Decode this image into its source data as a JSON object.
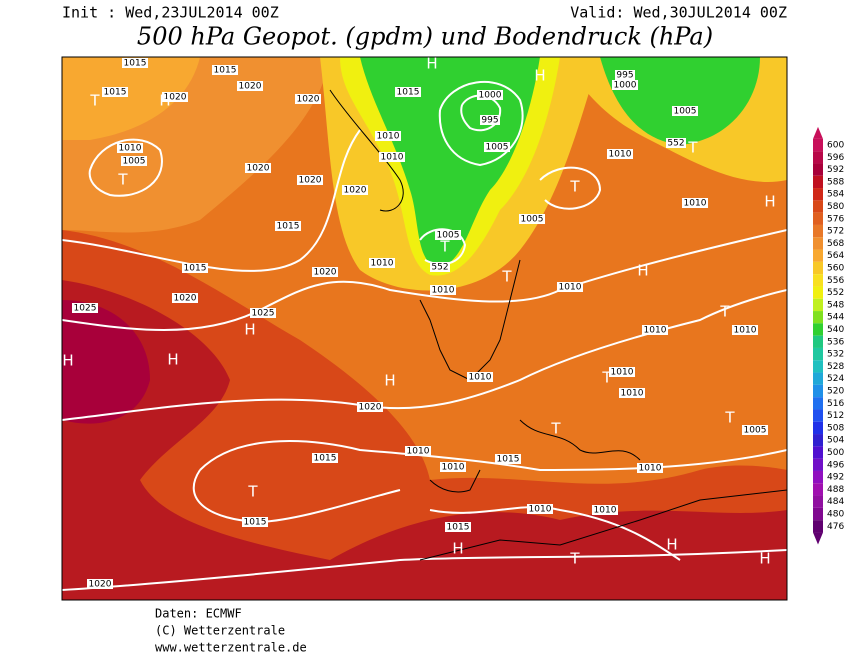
{
  "header": {
    "init": "Init : Wed,23JUL2014 00Z",
    "valid": "Valid: Wed,30JUL2014 00Z",
    "title": "500 hPa Geopot. (gpdm) und Bodendruck (hPa)"
  },
  "colorbar": {
    "ticks": [
      600,
      596,
      592,
      588,
      584,
      580,
      576,
      572,
      568,
      564,
      560,
      556,
      552,
      548,
      544,
      540,
      536,
      532,
      528,
      524,
      520,
      516,
      512,
      508,
      504,
      500,
      496,
      492,
      488,
      484,
      480,
      476
    ],
    "colors": [
      "#c8105a",
      "#b80848",
      "#a8003a",
      "#c01020",
      "#d02818",
      "#d84818",
      "#e06020",
      "#e87828",
      "#f09030",
      "#f8a830",
      "#f8c828",
      "#f8e020",
      "#f0f010",
      "#c0f020",
      "#80e020",
      "#30d030",
      "#20c880",
      "#20c8a0",
      "#20c0c0",
      "#20a8d8",
      "#2090e8",
      "#2070f0",
      "#2050f0",
      "#2030e8",
      "#3020d0",
      "#5010d0",
      "#7010c8",
      "#9010c0",
      "#a010b0",
      "#9010a0",
      "#800890",
      "#600070"
    ]
  },
  "map_labels": [
    "1015",
    "1015",
    "1020",
    "T",
    "H",
    "1015",
    "1020",
    "1020",
    "1010",
    "1005",
    "T",
    "1020",
    "1015",
    "1020",
    "1020",
    "1010",
    "1010",
    "H",
    "1000",
    "995",
    "1005",
    "1015",
    "T",
    "1005",
    "552",
    "1010",
    "1010",
    "1020",
    "1025",
    "1015",
    "1020",
    "1025",
    "H",
    "H",
    "H",
    "H",
    "1020",
    "1015",
    "T",
    "1015",
    "1010",
    "1010",
    "1015",
    "1010",
    "1010",
    "1010",
    "1015",
    "H",
    "T",
    "H",
    "H",
    "1020",
    "552",
    "1005",
    "1010",
    "1010",
    "H",
    "H",
    "T",
    "1010",
    "1010",
    "1010",
    "1010",
    "1005",
    "T",
    "T",
    "T",
    "1010",
    "1005",
    "T",
    "T",
    "1010",
    "T",
    "H",
    "1000",
    "995"
  ],
  "footer": [
    "Daten: ECMWF",
    "(C) Wetterzentrale",
    "www.wetterzentrale.de"
  ]
}
